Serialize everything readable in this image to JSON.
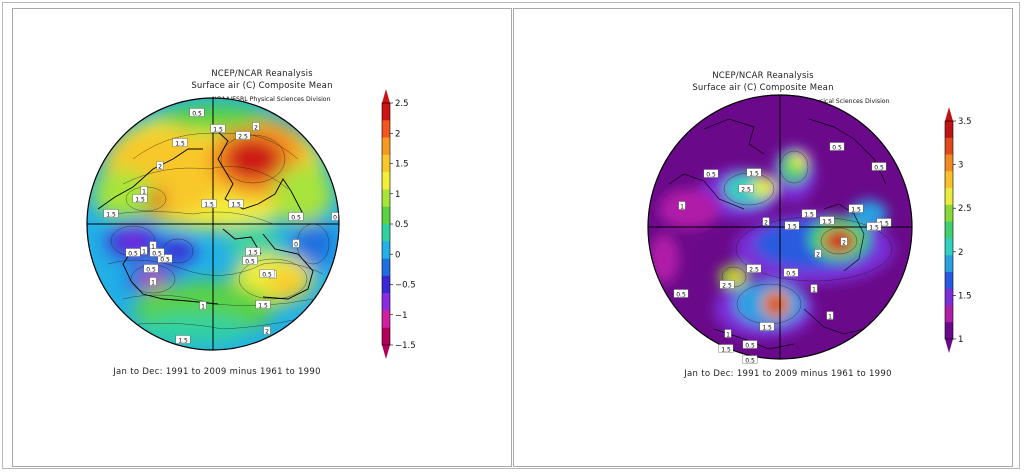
{
  "chart_data": [
    {
      "type": "heatmap",
      "title": "NCEP/NCAR Reanalysis",
      "subtitle": "Surface air (C) Composite Mean",
      "credit": "NOAA/ESRL Physical Sciences Division",
      "footer": "Jan to Dec: 1991 to 2009 minus 1961 to 1990",
      "colorbar_ticks": [
        2.5,
        2,
        1.5,
        1,
        0.5,
        0,
        -0.5,
        -1,
        -1.5
      ],
      "colorbar_range": [
        -1.5,
        2.5
      ],
      "colorbar_colors": [
        "#b0005a",
        "#d41ea0",
        "#8a2be0",
        "#3a28d8",
        "#1f6fe0",
        "#22b0e6",
        "#30d2a0",
        "#5ad244",
        "#a8e43a",
        "#f2ee3a",
        "#f8c82a",
        "#f79a22",
        "#f2561c",
        "#cc1414"
      ],
      "contour_labels": [
        "0.5",
        "1.5",
        "2.5",
        "2",
        "1.5",
        "2",
        "1",
        "1.5",
        "1.5",
        "1.5",
        "0.5",
        "1.5",
        "0",
        "1",
        "1",
        "0.5",
        "0.5",
        "1",
        "0.5",
        "0.5",
        "1",
        "1.5",
        "1",
        "0.5",
        "0",
        "0.5",
        "2",
        "1.5",
        "1.5"
      ]
    },
    {
      "type": "heatmap",
      "title": "NCEP/NCAR Reanalysis",
      "subtitle": "Surface air (C) Composite Mean",
      "credit": "NOAA/ESRL Physical Sciences Division",
      "footer": "Jan to Dec: 1991 to 2009 minus 1961 to 1990",
      "colorbar_ticks": [
        3.5,
        3,
        2.5,
        2,
        1.5,
        1
      ],
      "colorbar_range": [
        1,
        3.5
      ],
      "colorbar_colors": [
        "#6a0a8a",
        "#b01ea8",
        "#7a2fd8",
        "#2a5ae0",
        "#2aa0e2",
        "#30d0c0",
        "#40d070",
        "#88d83a",
        "#e8ec3a",
        "#f8c02a",
        "#f28a22",
        "#e04a1a",
        "#c01414"
      ],
      "contour_labels": [
        "0.5",
        "1.5",
        "2.5",
        "0.5",
        "0.5",
        "1",
        "1.5",
        "2",
        "1.5",
        "1.5",
        "1.5",
        "1.5",
        "2",
        "2.5",
        "1.5",
        "2.5",
        "1",
        "1",
        "0.5",
        "1.5",
        "0.5",
        "1",
        "0.5",
        "0.5",
        "1.5",
        "2"
      ]
    }
  ]
}
